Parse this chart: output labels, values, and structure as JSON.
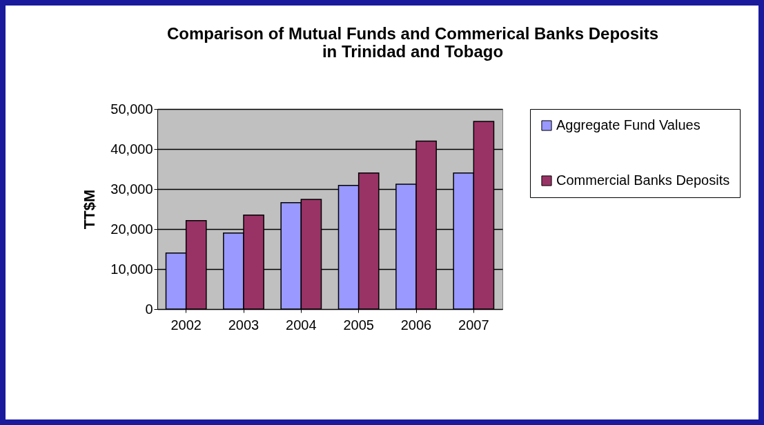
{
  "chart_data": {
    "type": "bar",
    "title": "Comparison of Mutual Funds and Commerical Banks Deposits in Trinidad and Tobago",
    "ylabel": "TT$M",
    "categories": [
      "2002",
      "2003",
      "2004",
      "2005",
      "2006",
      "2007"
    ],
    "series": [
      {
        "name": "Aggregate Fund Values",
        "color": "#9999ff",
        "values": [
          14000,
          19000,
          26600,
          30900,
          31200,
          34000
        ]
      },
      {
        "name": "Commercial Banks Deposits",
        "color": "#993366",
        "values": [
          22100,
          23500,
          27400,
          34000,
          42000,
          46900
        ]
      }
    ],
    "ylim": [
      0,
      50000
    ],
    "yticks": [
      0,
      {
        "value": 10000,
        "label": "10,000"
      },
      {
        "value": 20000,
        "label": "20,000"
      },
      {
        "value": 30000,
        "label": "30,000"
      },
      {
        "value": 40000,
        "label": "40,000"
      },
      {
        "value": 50000,
        "label": "50,000"
      }
    ],
    "grid": "y",
    "legend": "right"
  }
}
